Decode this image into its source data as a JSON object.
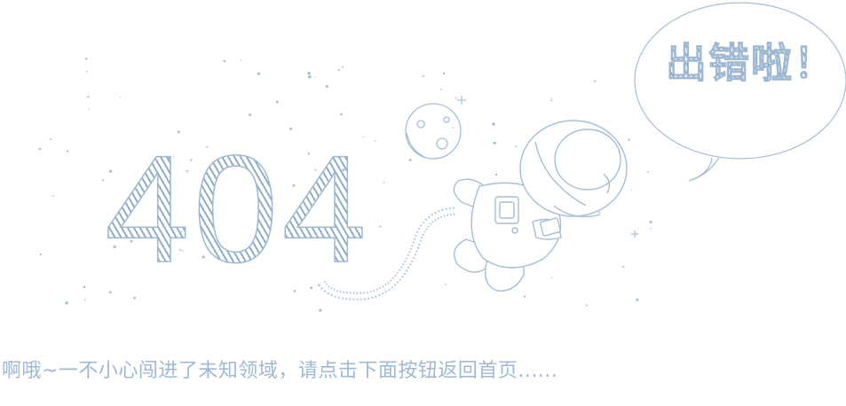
{
  "error_code": "404",
  "bubble_text": "出错啦！",
  "message": "啊哦~一不小心闯进了未知领域，请点击下面按钮返回首页......",
  "colors": {
    "accent": "#9fb9d2",
    "stroke": "#a6bfd6",
    "background": "#ffffff"
  }
}
